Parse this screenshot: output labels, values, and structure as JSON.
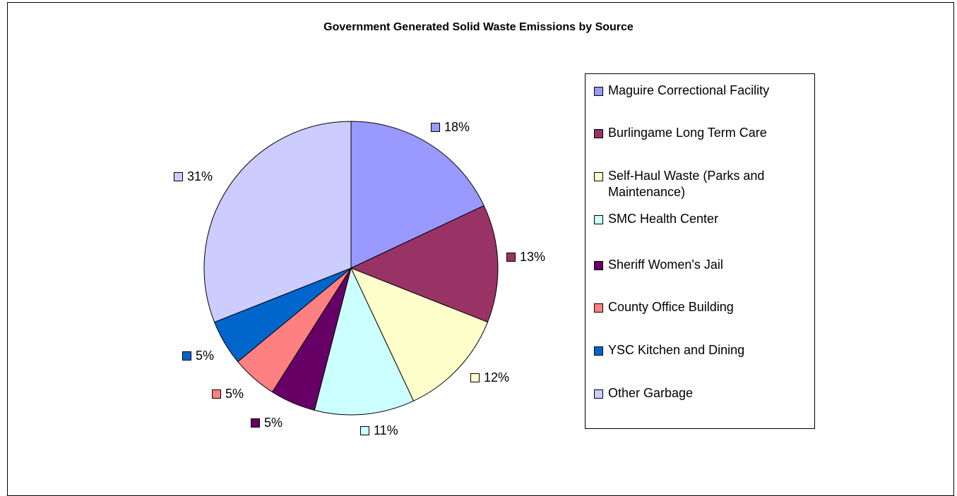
{
  "chart_data": {
    "type": "pie",
    "title": "Government Generated Solid Waste Emissions by Source",
    "legend_position": "right",
    "slices": [
      {
        "label": "Maguire Correctional Facility",
        "value": 18,
        "display": "18%",
        "color": "#9999FF"
      },
      {
        "label": "Burlingame Long Term Care",
        "value": 13,
        "display": "13%",
        "color": "#993366"
      },
      {
        "label": "Self-Haul Waste (Parks and Maintenance)",
        "value": 12,
        "display": "12%",
        "color": "#FFFFCC"
      },
      {
        "label": "SMC Health Center",
        "value": 11,
        "display": "11%",
        "color": "#CCFFFF"
      },
      {
        "label": "Sheriff Women's Jail",
        "value": 5,
        "display": "5%",
        "color": "#660066"
      },
      {
        "label": "County Office Building",
        "value": 5,
        "display": "5%",
        "color": "#FF8080"
      },
      {
        "label": "YSC Kitchen and Dining",
        "value": 5,
        "display": "5%",
        "color": "#0066CC"
      },
      {
        "label": "Other Garbage",
        "value": 31,
        "display": "31%",
        "color": "#CCCCFF"
      }
    ]
  }
}
